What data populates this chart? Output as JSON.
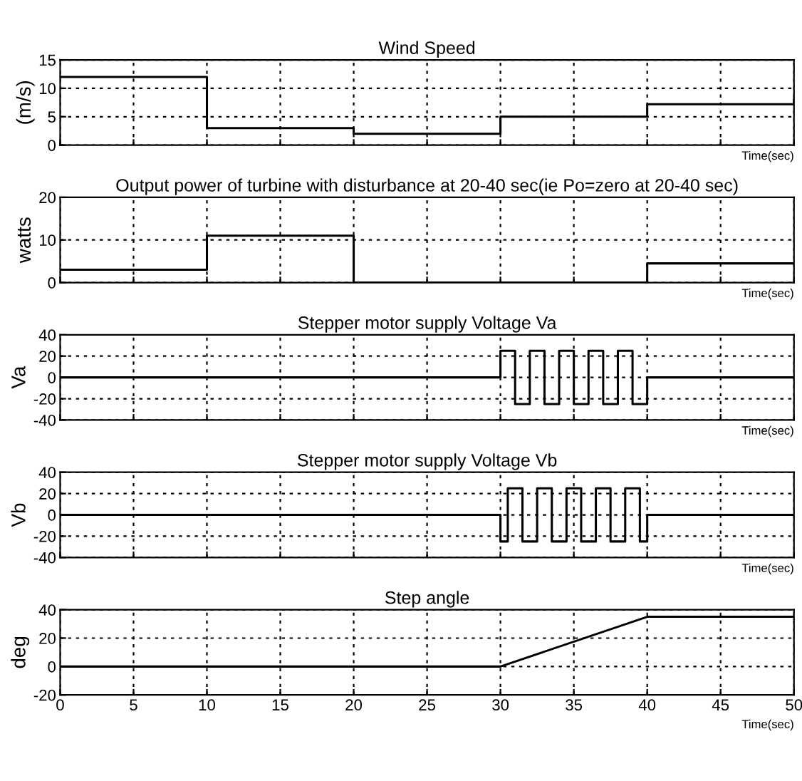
{
  "chart_data": [
    {
      "type": "line",
      "title": "Wind Speed",
      "ylabel": "(m/s)",
      "xlabel": "Time(sec)",
      "xlim": [
        0,
        50
      ],
      "xticks": [
        0,
        5,
        10,
        15,
        20,
        25,
        30,
        35,
        40,
        45,
        50
      ],
      "ylim": [
        0,
        15
      ],
      "yticks": [
        0,
        5,
        10,
        15
      ],
      "grid": true,
      "line_style": "solid",
      "tick_labels": "y",
      "series": [
        {
          "color": "#000000",
          "x": [
            0,
            10,
            10,
            20,
            20,
            30,
            30,
            40,
            40,
            50,
            50
          ],
          "values": [
            12,
            12,
            3,
            3,
            2,
            2,
            5,
            5,
            7.2,
            7.2,
            8
          ]
        }
      ]
    },
    {
      "type": "line",
      "title": "Output power of turbine with disturbance at 20-40 sec(ie Po=zero at 20-40 sec)",
      "ylabel": "watts",
      "xlabel": "Time(sec)",
      "xlim": [
        0,
        50
      ],
      "xticks": [
        0,
        5,
        10,
        15,
        20,
        25,
        30,
        35,
        40,
        45,
        50
      ],
      "ylim": [
        0,
        20
      ],
      "yticks": [
        0,
        10,
        20
      ],
      "grid": true,
      "line_style": "solid",
      "tick_labels": "y",
      "series": [
        {
          "color": "#000000",
          "x": [
            0,
            10,
            10,
            20,
            20,
            40,
            40,
            50
          ],
          "values": [
            3,
            3,
            11,
            11,
            0,
            0,
            4.5,
            4.5
          ]
        }
      ]
    },
    {
      "type": "line",
      "title": "Stepper motor supply Voltage Va",
      "ylabel": "Va",
      "xlabel": "Time(sec)",
      "xlim": [
        0,
        50
      ],
      "xticks": [
        0,
        5,
        10,
        15,
        20,
        25,
        30,
        35,
        40,
        45,
        50
      ],
      "ylim": [
        -40,
        40
      ],
      "yticks": [
        -40,
        -20,
        0,
        20,
        40
      ],
      "grid": true,
      "line_style": "solid",
      "tick_labels": "y",
      "series": [
        {
          "color": "#000000",
          "x": [
            0,
            30,
            30,
            31,
            31,
            32,
            32,
            33,
            33,
            34,
            34,
            35,
            35,
            36,
            36,
            37,
            37,
            38,
            38,
            39,
            39,
            40,
            40,
            50
          ],
          "values": [
            0,
            0,
            25,
            25,
            -25,
            -25,
            25,
            25,
            -25,
            -25,
            25,
            25,
            -25,
            -25,
            25,
            25,
            -25,
            -25,
            25,
            25,
            -25,
            -25,
            0,
            0
          ]
        }
      ]
    },
    {
      "type": "line",
      "title": "Stepper motor supply Voltage Vb",
      "ylabel": "Vb",
      "xlabel": "Time(sec)",
      "xlim": [
        0,
        50
      ],
      "xticks": [
        0,
        5,
        10,
        15,
        20,
        25,
        30,
        35,
        40,
        45,
        50
      ],
      "ylim": [
        -40,
        40
      ],
      "yticks": [
        -40,
        -20,
        0,
        20,
        40
      ],
      "grid": true,
      "line_style": "solid",
      "tick_labels": "y",
      "series": [
        {
          "color": "#000000",
          "x": [
            0,
            30,
            30,
            30.5,
            30.5,
            31.5,
            31.5,
            32.5,
            32.5,
            33.5,
            33.5,
            34.5,
            34.5,
            35.5,
            35.5,
            36.5,
            36.5,
            37.5,
            37.5,
            38.5,
            38.5,
            39.5,
            39.5,
            40,
            40,
            50
          ],
          "values": [
            0,
            0,
            -25,
            -25,
            25,
            25,
            -25,
            -25,
            25,
            25,
            -25,
            -25,
            25,
            25,
            -25,
            -25,
            25,
            25,
            -25,
            -25,
            25,
            25,
            -25,
            -25,
            0,
            0
          ]
        }
      ]
    },
    {
      "type": "line",
      "title": "Step angle",
      "ylabel": "deg",
      "xlabel": "Time(sec)",
      "xlim": [
        0,
        50
      ],
      "xticks": [
        0,
        5,
        10,
        15,
        20,
        25,
        30,
        35,
        40,
        45,
        50
      ],
      "ylim": [
        -20,
        40
      ],
      "yticks": [
        -20,
        0,
        20,
        40
      ],
      "grid": true,
      "line_style": "solid",
      "series": [
        {
          "color": "#000000",
          "x": [
            0,
            30,
            40,
            50
          ],
          "values": [
            0,
            0,
            35,
            35
          ]
        }
      ]
    }
  ]
}
